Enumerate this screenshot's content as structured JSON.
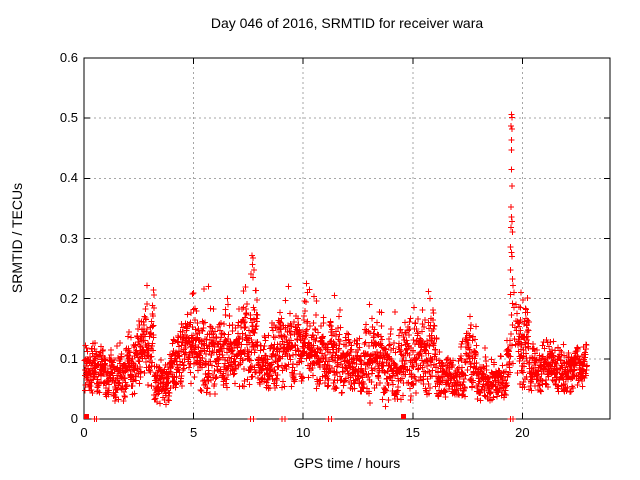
{
  "chart_data": {
    "type": "scatter",
    "title": "Day 046 of 2016, SRMTID for receiver wara",
    "xlabel": "GPS time / hours",
    "ylabel": "SRMTID / TECUs",
    "xlim": [
      0,
      24
    ],
    "ylim": [
      0,
      0.6
    ],
    "xticks": [
      0,
      5,
      10,
      15,
      20
    ],
    "xtick_labels": [
      "0",
      "5",
      "10",
      "15",
      "20"
    ],
    "yticks": [
      0,
      0.1,
      0.2,
      0.3,
      0.4,
      0.5,
      0.6
    ],
    "ytick_labels": [
      "0",
      "0.1",
      "0.2",
      "0.3",
      "0.4",
      "0.5",
      "0.6"
    ],
    "grid": true,
    "legend": "none",
    "marker": "plus",
    "colors": {
      "marker": "#ff0000",
      "axis": "#000000",
      "grid": "#a6a6a6",
      "background": "#ffffff"
    },
    "series": [
      {
        "name": "srmtid_scatter",
        "marker": "plus",
        "seed": 2016046,
        "segment_columns": [
          "t_start",
          "t_end",
          "n_points",
          "mean",
          "sd",
          "min",
          "max"
        ],
        "density_segments": [
          [
            0.03,
            0.35,
            45,
            0.075,
            0.02,
            0.045,
            0.13
          ],
          [
            0.35,
            1.0,
            85,
            0.085,
            0.024,
            0.04,
            0.145
          ],
          [
            1.0,
            1.9,
            110,
            0.07,
            0.022,
            0.03,
            0.13
          ],
          [
            1.9,
            2.5,
            80,
            0.09,
            0.027,
            0.04,
            0.16
          ],
          [
            2.5,
            3.2,
            95,
            0.115,
            0.038,
            0.05,
            0.225
          ],
          [
            3.2,
            3.9,
            90,
            0.06,
            0.02,
            0.022,
            0.11
          ],
          [
            3.9,
            4.4,
            65,
            0.09,
            0.025,
            0.05,
            0.15
          ],
          [
            4.4,
            5.3,
            115,
            0.12,
            0.034,
            0.05,
            0.21
          ],
          [
            5.3,
            6.1,
            100,
            0.1,
            0.035,
            0.04,
            0.22
          ],
          [
            6.1,
            7.2,
            140,
            0.105,
            0.03,
            0.05,
            0.2
          ],
          [
            7.2,
            7.95,
            100,
            0.13,
            0.042,
            0.05,
            0.265
          ],
          [
            7.95,
            8.6,
            80,
            0.09,
            0.025,
            0.05,
            0.16
          ],
          [
            8.6,
            9.6,
            130,
            0.115,
            0.032,
            0.05,
            0.22
          ],
          [
            9.6,
            10.6,
            130,
            0.12,
            0.034,
            0.06,
            0.22
          ],
          [
            10.6,
            11.2,
            80,
            0.1,
            0.028,
            0.05,
            0.17
          ],
          [
            11.2,
            11.7,
            65,
            0.11,
            0.033,
            0.05,
            0.205
          ],
          [
            11.7,
            12.8,
            130,
            0.085,
            0.024,
            0.04,
            0.15
          ],
          [
            12.8,
            13.6,
            100,
            0.1,
            0.034,
            0.02,
            0.19
          ],
          [
            13.6,
            14.5,
            110,
            0.08,
            0.033,
            0.02,
            0.18
          ],
          [
            14.5,
            15.1,
            75,
            0.1,
            0.034,
            0.03,
            0.2
          ],
          [
            15.1,
            16.1,
            120,
            0.11,
            0.038,
            0.04,
            0.215
          ],
          [
            16.1,
            17.4,
            150,
            0.07,
            0.022,
            0.035,
            0.13
          ],
          [
            17.4,
            17.9,
            60,
            0.1,
            0.03,
            0.05,
            0.17
          ],
          [
            17.9,
            19.25,
            150,
            0.065,
            0.02,
            0.03,
            0.12
          ],
          [
            19.25,
            19.45,
            25,
            0.09,
            0.03,
            0.05,
            0.16
          ],
          [
            19.78,
            20.3,
            80,
            0.12,
            0.038,
            0.05,
            0.21
          ],
          [
            20.3,
            21.0,
            85,
            0.08,
            0.022,
            0.04,
            0.13
          ],
          [
            21.0,
            21.6,
            75,
            0.09,
            0.025,
            0.05,
            0.155
          ],
          [
            21.6,
            22.3,
            85,
            0.08,
            0.022,
            0.045,
            0.13
          ],
          [
            22.3,
            22.95,
            80,
            0.085,
            0.022,
            0.05,
            0.13
          ]
        ],
        "peak_points": [
          [
            7.66,
            0.272
          ],
          [
            7.72,
            0.268
          ],
          [
            7.69,
            0.257
          ],
          [
            7.75,
            0.248
          ],
          [
            7.63,
            0.241
          ],
          [
            7.7,
            0.235
          ],
          [
            2.88,
            0.222
          ],
          [
            5.68,
            0.22
          ],
          [
            9.32,
            0.22
          ],
          [
            10.15,
            0.225
          ],
          [
            10.3,
            0.215
          ],
          [
            6.55,
            0.2
          ],
          [
            11.42,
            0.205
          ],
          [
            15.72,
            0.212
          ],
          [
            15.78,
            0.2
          ],
          [
            13.02,
            0.19
          ],
          [
            17.62,
            0.17
          ],
          [
            19.95,
            0.21
          ],
          [
            20.02,
            0.198
          ],
          [
            4.95,
            0.208
          ],
          [
            14.2,
            0.178
          ]
        ],
        "anomaly_spike_points": [
          [
            19.5,
            0.506
          ],
          [
            19.53,
            0.501
          ],
          [
            19.49,
            0.487
          ],
          [
            19.52,
            0.482
          ],
          [
            19.51,
            0.464
          ],
          [
            19.5,
            0.447
          ],
          [
            19.51,
            0.415
          ],
          [
            19.53,
            0.387
          ],
          [
            19.48,
            0.352
          ],
          [
            19.5,
            0.336
          ],
          [
            19.52,
            0.328
          ],
          [
            19.49,
            0.318
          ],
          [
            19.54,
            0.311
          ],
          [
            19.47,
            0.286
          ],
          [
            19.51,
            0.277
          ],
          [
            19.53,
            0.27
          ],
          [
            19.46,
            0.248
          ],
          [
            19.56,
            0.233
          ],
          [
            19.58,
            0.222
          ],
          [
            19.45,
            0.207
          ],
          [
            19.55,
            0.192
          ],
          [
            19.5,
            0.173
          ],
          [
            19.56,
            0.156
          ],
          [
            19.48,
            0.141
          ],
          [
            19.52,
            0.122
          ],
          [
            19.47,
            0.104
          ],
          [
            19.57,
            0.092
          ],
          [
            19.62,
            0.185
          ],
          [
            19.66,
            0.152
          ],
          [
            19.7,
            0.19
          ],
          [
            19.68,
            0.124
          ],
          [
            19.72,
            0.163
          ],
          [
            19.61,
            0.21
          ],
          [
            19.64,
            0.133
          ],
          [
            19.74,
            0.147
          ],
          [
            19.76,
            0.175
          ]
        ]
      },
      {
        "name": "axis_plus_marks",
        "marker": "plus",
        "y": 0,
        "x_values": [
          0.47,
          0.58,
          7.6,
          7.74,
          9.04,
          9.18,
          11.15,
          11.3,
          19.45,
          19.57
        ]
      },
      {
        "name": "axis_square_marks",
        "marker": "square",
        "y": 0.004,
        "x_values": [
          0.12,
          14.58
        ]
      }
    ]
  }
}
